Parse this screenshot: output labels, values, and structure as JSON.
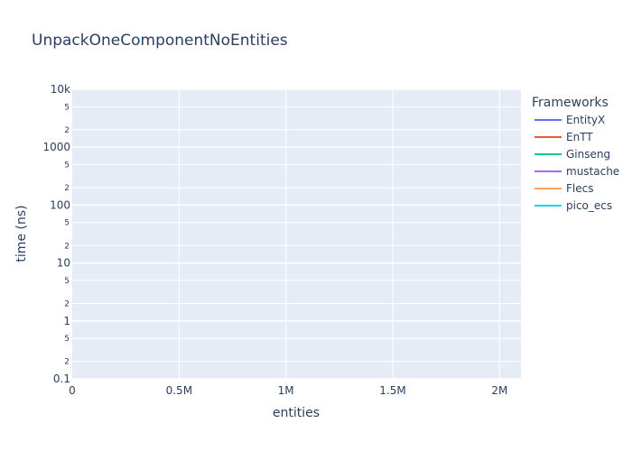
{
  "chart_data": {
    "type": "line",
    "title": "UnpackOneComponentNoEntities",
    "xlabel": "entities",
    "ylabel": "time (ns)",
    "xlim": [
      0,
      2100000
    ],
    "ylim": [
      0.1,
      10000
    ],
    "yscale": "log",
    "grid": true,
    "legend_title": "Frameworks",
    "legend_position": "right",
    "x_ticks": [
      {
        "value": 0,
        "label": "0"
      },
      {
        "value": 500000,
        "label": "0.5M"
      },
      {
        "value": 1000000,
        "label": "1M"
      },
      {
        "value": 1500000,
        "label": "1.5M"
      },
      {
        "value": 2000000,
        "label": "2M"
      }
    ],
    "y_major_ticks": [
      {
        "value": 0.1,
        "label": "0.1"
      },
      {
        "value": 1,
        "label": "1"
      },
      {
        "value": 10,
        "label": "10"
      },
      {
        "value": 100,
        "label": "100"
      },
      {
        "value": 1000,
        "label": "1000"
      },
      {
        "value": 10000,
        "label": "10k"
      }
    ],
    "y_minor_ticks": [
      {
        "value": 0.2,
        "label": "2"
      },
      {
        "value": 0.5,
        "label": "5"
      },
      {
        "value": 2,
        "label": "2"
      },
      {
        "value": 5,
        "label": "5"
      },
      {
        "value": 20,
        "label": "2"
      },
      {
        "value": 50,
        "label": "5"
      },
      {
        "value": 200,
        "label": "2"
      },
      {
        "value": 500,
        "label": "5"
      },
      {
        "value": 2000,
        "label": "2"
      },
      {
        "value": 5000,
        "label": "5"
      }
    ],
    "series": [
      {
        "name": "EntityX",
        "color": "#636efa",
        "x": [],
        "y": []
      },
      {
        "name": "EnTT",
        "color": "#ef553b",
        "x": [],
        "y": []
      },
      {
        "name": "Ginseng",
        "color": "#00cc96",
        "x": [],
        "y": []
      },
      {
        "name": "mustache",
        "color": "#ab63fa",
        "x": [],
        "y": []
      },
      {
        "name": "Flecs",
        "color": "#ffa15a",
        "x": [],
        "y": []
      },
      {
        "name": "pico_ecs",
        "color": "#19d3f3",
        "x": [],
        "y": []
      }
    ],
    "plot_background": "#e5ecf6",
    "grid_color": "#ffffff"
  }
}
